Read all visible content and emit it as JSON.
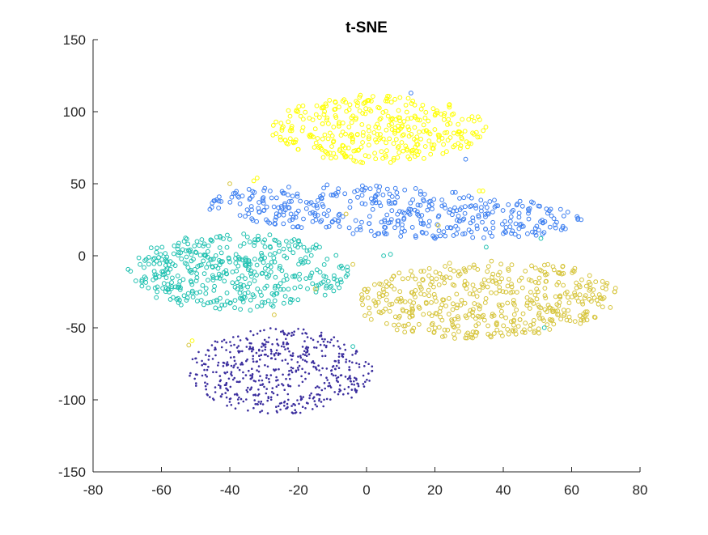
{
  "chart_data": {
    "type": "scatter",
    "title": "t-SNE",
    "xlabel": "",
    "ylabel": "",
    "xlim": [
      -80,
      80
    ],
    "ylim": [
      -150,
      150
    ],
    "xticks": [
      -80,
      -60,
      -40,
      -20,
      0,
      20,
      40,
      60,
      80
    ],
    "yticks": [
      -150,
      -100,
      -50,
      0,
      50,
      100,
      150
    ],
    "grid": false,
    "legend": "none",
    "axis_color": "#262626",
    "clusters": [
      {
        "color": "#ffff00",
        "marker": "circle",
        "center": [
          15,
          88
        ],
        "spread": [
          30,
          12
        ],
        "range_x": [
          -28,
          35
        ],
        "range_y": [
          64,
          112
        ],
        "count": 360
      },
      {
        "color": "#3a7df0",
        "marker": "circle",
        "center": [
          5,
          32
        ],
        "spread": [
          34,
          8
        ],
        "range_x": [
          -48,
          63
        ],
        "range_y": [
          13,
          48
        ],
        "count": 420
      },
      {
        "color": "#1ec0b0",
        "marker": "circle",
        "center": [
          -38,
          -10
        ],
        "spread": [
          18,
          14
        ],
        "range_x": [
          -70,
          -5
        ],
        "range_y": [
          -38,
          16
        ],
        "count": 430
      },
      {
        "color": "#d6c43a",
        "marker": "circle",
        "center": [
          38,
          -32
        ],
        "spread": [
          20,
          11
        ],
        "range_x": [
          -3,
          74
        ],
        "range_y": [
          -58,
          -3
        ],
        "count": 470
      },
      {
        "color": "#3b2e9e",
        "marker": "dot",
        "center": [
          -20,
          -80
        ],
        "spread": [
          13,
          12
        ],
        "range_x": [
          -52,
          2
        ],
        "range_y": [
          -110,
          -50
        ],
        "count": 560
      }
    ],
    "outliers": [
      {
        "x": -32,
        "y": 54,
        "color": "#ffff00"
      },
      {
        "x": -33,
        "y": 52,
        "color": "#ffff00"
      },
      {
        "x": 33,
        "y": 45,
        "color": "#ffff00"
      },
      {
        "x": 34,
        "y": 45,
        "color": "#ffff00"
      },
      {
        "x": -51,
        "y": -59,
        "color": "#ffff00"
      },
      {
        "x": -52,
        "y": -62,
        "color": "#d6c43a"
      },
      {
        "x": -27,
        "y": -41,
        "color": "#d6c43a"
      },
      {
        "x": 5,
        "y": 0,
        "color": "#1ec0b0"
      },
      {
        "x": 7,
        "y": 1,
        "color": "#1ec0b0"
      },
      {
        "x": 13,
        "y": 113,
        "color": "#3a7df0"
      },
      {
        "x": 29,
        "y": 67,
        "color": "#3a7df0"
      },
      {
        "x": 26,
        "y": 44,
        "color": "#3a7df0"
      },
      {
        "x": 21,
        "y": 21,
        "color": "#d6c43a"
      },
      {
        "x": -15,
        "y": -23,
        "color": "#d6c43a"
      },
      {
        "x": 52,
        "y": -50,
        "color": "#1ec0b0"
      },
      {
        "x": -6,
        "y": 29,
        "color": "#d6c43a"
      },
      {
        "x": -40,
        "y": 50,
        "color": "#d6c43a"
      },
      {
        "x": 35,
        "y": 6,
        "color": "#1ec0b0"
      },
      {
        "x": -4,
        "y": -6,
        "color": "#d6c43a"
      },
      {
        "x": -4,
        "y": -63,
        "color": "#1ec0b0"
      },
      {
        "x": 51,
        "y": 12,
        "color": "#1ec0b0"
      }
    ]
  }
}
